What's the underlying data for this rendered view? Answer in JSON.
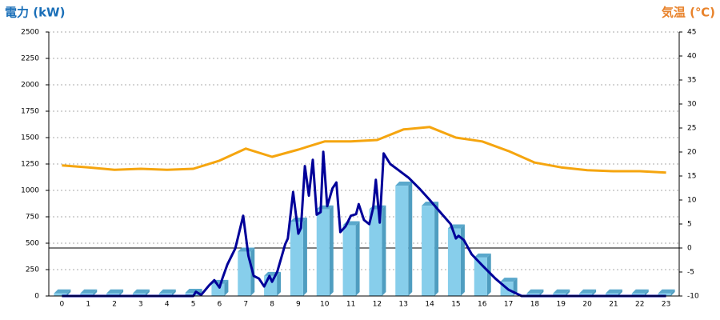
{
  "chart_data": {
    "type": "bar",
    "title_left": "電力 (kW)",
    "title_right": "気温 (℃)",
    "title_left_color": "#1a6fb8",
    "title_right_color": "#e8822a",
    "categories": [
      0,
      1,
      2,
      3,
      4,
      5,
      6,
      7,
      8,
      9,
      10,
      11,
      12,
      13,
      14,
      15,
      16,
      17,
      18,
      19,
      20,
      21,
      22,
      23
    ],
    "xlim": [
      -0.5,
      23.5
    ],
    "ylim": [
      0,
      2500
    ],
    "yticks": [
      0,
      250,
      500,
      750,
      1000,
      1250,
      1500,
      1750,
      2000,
      2250,
      2500
    ],
    "y2lim": [
      -10,
      45
    ],
    "y2ticks": [
      -10,
      -5,
      0,
      5,
      10,
      15,
      20,
      25,
      30,
      35,
      40,
      45
    ],
    "y2_reference_line": 0,
    "grid": true,
    "series": [
      {
        "type": "bar",
        "color": "#87ceeb",
        "values": [
          25,
          25,
          25,
          25,
          25,
          30,
          115,
          420,
          190,
          705,
          820,
          670,
          820,
          1045,
          855,
          640,
          365,
          135,
          25,
          25,
          25,
          25,
          25,
          25
        ]
      },
      {
        "type": "line",
        "axis": "y2",
        "color": "#f5a50f",
        "values": [
          17.2,
          16.8,
          16.3,
          16.5,
          16.3,
          16.5,
          18.2,
          20.7,
          19,
          20.5,
          22.2,
          22.2,
          22.5,
          24.7,
          25.2,
          23,
          22.2,
          20.2,
          17.8,
          16.8,
          16.2,
          16,
          16,
          15.7
        ]
      },
      {
        "type": "line",
        "color": "#000099",
        "x": [
          0,
          5,
          5.1,
          5.3,
          5.6,
          5.8,
          6,
          6.1,
          6.3,
          6.6,
          6.9,
          7.1,
          7.3,
          7.5,
          7.7,
          7.9,
          8,
          8.2,
          8.5,
          8.6,
          8.8,
          9,
          9.1,
          9.25,
          9.4,
          9.55,
          9.7,
          9.85,
          9.95,
          10.1,
          10.3,
          10.45,
          10.6,
          10.8,
          11,
          11.2,
          11.3,
          11.5,
          11.7,
          11.85,
          11.95,
          12.1,
          12.25,
          12.5,
          12.8,
          13.2,
          13.6,
          14,
          14.4,
          14.8,
          15,
          15.1,
          15.3,
          15.6,
          16,
          16.5,
          17,
          17.5,
          23
        ],
        "values": [
          0,
          0,
          40,
          10,
          100,
          150,
          80,
          160,
          300,
          450,
          760,
          380,
          190,
          165,
          90,
          190,
          135,
          230,
          490,
          545,
          985,
          590,
          645,
          1230,
          950,
          1290,
          770,
          795,
          1365,
          850,
          1020,
          1075,
          605,
          660,
          760,
          775,
          870,
          720,
          680,
          835,
          1100,
          695,
          1350,
          1250,
          1195,
          1120,
          1020,
          910,
          795,
          680,
          545,
          570,
          530,
          395,
          290,
          165,
          60,
          0,
          0
        ]
      }
    ]
  }
}
